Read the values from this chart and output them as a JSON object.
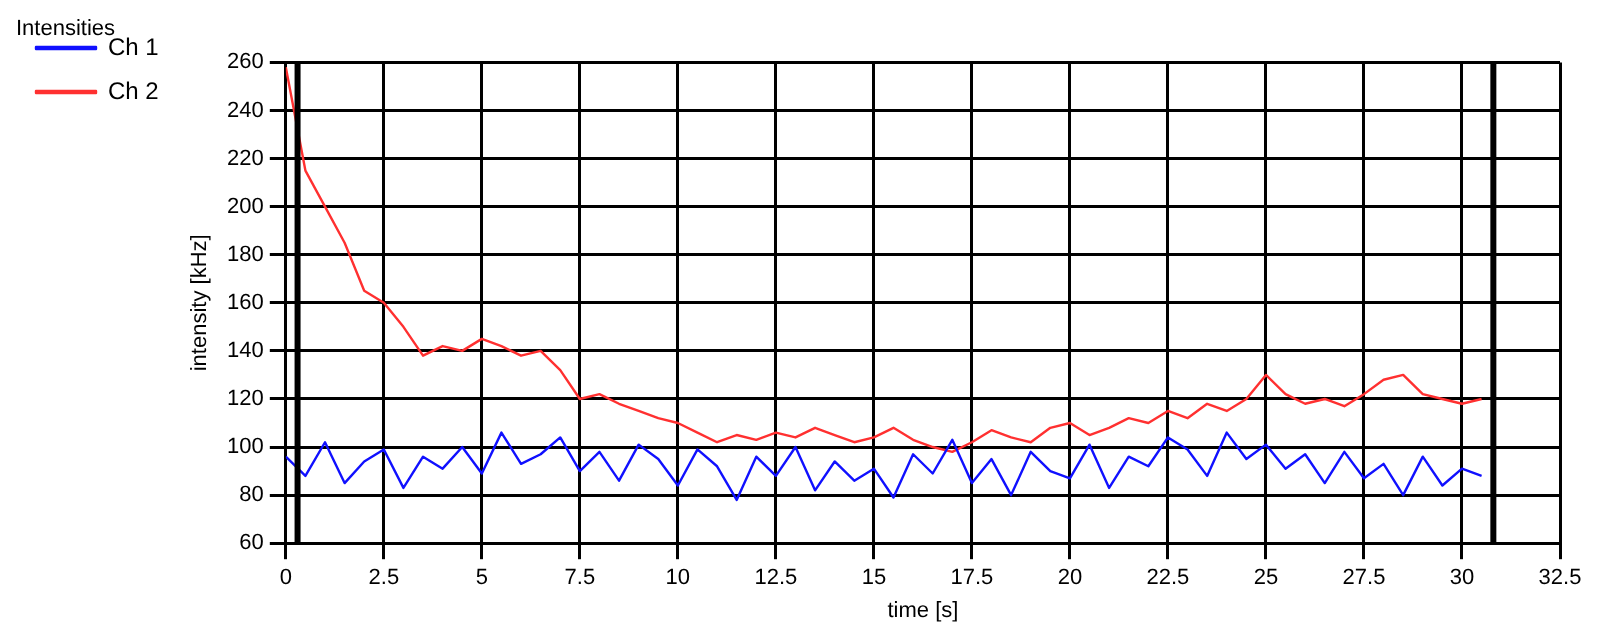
{
  "chart_data": {
    "type": "line",
    "title": "Intensities",
    "xlabel": "time [s]",
    "ylabel": "intensity [kHz]",
    "x": [
      0,
      0.5,
      1,
      1.5,
      2,
      2.5,
      3,
      3.5,
      4,
      4.5,
      5,
      5.5,
      6,
      6.5,
      7,
      7.5,
      8,
      8.5,
      9,
      9.5,
      10,
      10.5,
      11,
      11.5,
      12,
      12.5,
      13,
      13.5,
      14,
      14.5,
      15,
      15.5,
      16,
      16.5,
      17,
      17.5,
      18,
      18.5,
      19,
      19.5,
      20,
      20.5,
      21,
      21.5,
      22,
      22.5,
      23,
      23.5,
      24,
      24.5,
      25,
      25.5,
      26,
      26.5,
      27,
      27.5,
      28,
      28.5,
      29,
      29.5,
      30,
      30.5
    ],
    "series": [
      {
        "name": "Ch 1",
        "color": "#1010ff",
        "values": [
          96,
          88,
          102,
          85,
          94,
          99,
          83,
          96,
          91,
          100,
          89,
          106,
          93,
          97,
          104,
          90,
          98,
          86,
          101,
          95,
          84,
          99,
          92,
          78,
          96,
          88,
          100,
          82,
          94,
          86,
          91,
          79,
          97,
          89,
          103,
          85,
          95,
          80,
          98,
          90,
          87,
          101,
          83,
          96,
          92,
          104,
          99,
          88,
          106,
          95,
          101,
          91,
          97,
          85,
          98,
          87,
          93,
          80,
          96,
          84,
          91,
          88
        ]
      },
      {
        "name": "Ch 2",
        "color": "#ff3030",
        "values": [
          258,
          215,
          200,
          185,
          165,
          160,
          150,
          138,
          142,
          140,
          145,
          142,
          138,
          140,
          132,
          120,
          122,
          118,
          115,
          112,
          110,
          106,
          102,
          105,
          103,
          106,
          104,
          108,
          105,
          102,
          104,
          108,
          103,
          100,
          98,
          102,
          107,
          104,
          102,
          108,
          110,
          105,
          108,
          112,
          110,
          115,
          112,
          118,
          115,
          120,
          130,
          122,
          118,
          120,
          117,
          122,
          128,
          130,
          122,
          120,
          118,
          120
        ]
      }
    ],
    "xlim": [
      0,
      32.5
    ],
    "xticks": [
      0,
      2.5,
      5,
      7.5,
      10,
      12.5,
      15,
      17.5,
      20,
      22.5,
      25,
      27.5,
      30,
      32.5
    ],
    "ylim": [
      60,
      260
    ],
    "yticks": [
      60,
      80,
      100,
      120,
      140,
      160,
      180,
      200,
      220,
      240,
      260
    ],
    "ref_lines": [
      {
        "axis": "x",
        "value": 0.3,
        "color": "#000000"
      },
      {
        "axis": "x",
        "value": 30.8,
        "color": "#000000"
      }
    ],
    "grid": true,
    "legend": "top left",
    "line_style": "solid",
    "marker": "none"
  }
}
